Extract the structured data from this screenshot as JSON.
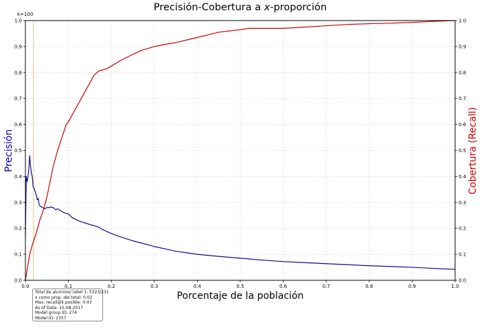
{
  "chart_data": {
    "type": "line",
    "title_parts": [
      "Precisión-Cobertura a ",
      "x",
      "-proporción"
    ],
    "xlabel": "Porcentaje de la población",
    "ylabel_left": "Precisión",
    "ylabel_right": "Cobertura (Recall)",
    "top_left_note": "k=100",
    "xlim": [
      0.0,
      1.0
    ],
    "ylim": [
      0.0,
      1.0
    ],
    "xticks": [
      "0.0",
      "0.1",
      "0.2",
      "0.3",
      "0.4",
      "0.5",
      "0.6",
      "0.7",
      "0.8",
      "0.9",
      "1.0"
    ],
    "yticks": [
      "0.0",
      "0.1",
      "0.2",
      "0.3",
      "0.4",
      "0.5",
      "0.6",
      "0.7",
      "0.8",
      "0.9",
      "1.0"
    ],
    "grid": true,
    "threshold_x": 0.0188,
    "colors": {
      "precision": "#0a0a8c",
      "recall": "#c80000",
      "threshold": "#e08800",
      "left_label": "#0000aa",
      "right_label": "#cc0000"
    },
    "series": [
      {
        "axis": "left",
        "x": [
          0.0,
          0.002,
          0.004,
          0.006,
          0.008,
          0.01,
          0.012,
          0.014,
          0.016,
          0.018,
          0.02,
          0.022,
          0.025,
          0.028,
          0.03,
          0.032,
          0.035,
          0.04,
          0.045,
          0.05,
          0.055,
          0.06,
          0.065,
          0.07,
          0.075,
          0.08,
          0.09,
          0.1,
          0.11,
          0.12,
          0.13,
          0.14,
          0.15,
          0.16,
          0.17,
          0.18,
          0.2,
          0.22,
          0.25,
          0.3,
          0.35,
          0.4,
          0.45,
          0.5,
          0.55,
          0.6,
          0.65,
          0.7,
          0.75,
          0.8,
          0.85,
          0.9,
          0.95,
          1.0
        ],
        "values": [
          0.17,
          0.4,
          0.38,
          0.4,
          0.43,
          0.48,
          0.44,
          0.41,
          0.4,
          0.36,
          0.355,
          0.345,
          0.33,
          0.31,
          0.315,
          0.29,
          0.285,
          0.28,
          0.275,
          0.28,
          0.28,
          0.282,
          0.28,
          0.272,
          0.275,
          0.27,
          0.26,
          0.255,
          0.24,
          0.232,
          0.225,
          0.22,
          0.215,
          0.21,
          0.205,
          0.195,
          0.18,
          0.168,
          0.152,
          0.13,
          0.112,
          0.1,
          0.092,
          0.085,
          0.078,
          0.072,
          0.068,
          0.064,
          0.06,
          0.056,
          0.053,
          0.05,
          0.046,
          0.042
        ]
      },
      {
        "axis": "right",
        "x": [
          0.0,
          0.005,
          0.01,
          0.015,
          0.02,
          0.025,
          0.03,
          0.035,
          0.04,
          0.045,
          0.05,
          0.055,
          0.06,
          0.065,
          0.07,
          0.075,
          0.08,
          0.085,
          0.09,
          0.095,
          0.1,
          0.11,
          0.12,
          0.13,
          0.14,
          0.15,
          0.16,
          0.17,
          0.18,
          0.19,
          0.2,
          0.22,
          0.25,
          0.27,
          0.3,
          0.33,
          0.35,
          0.4,
          0.45,
          0.5,
          0.52,
          0.55,
          0.6,
          0.65,
          0.7,
          0.75,
          0.8,
          0.85,
          0.9,
          0.95,
          1.0
        ],
        "values": [
          0.0,
          0.05,
          0.1,
          0.13,
          0.155,
          0.18,
          0.21,
          0.24,
          0.26,
          0.29,
          0.32,
          0.36,
          0.4,
          0.44,
          0.47,
          0.5,
          0.525,
          0.55,
          0.575,
          0.6,
          0.61,
          0.64,
          0.67,
          0.7,
          0.73,
          0.76,
          0.79,
          0.805,
          0.81,
          0.815,
          0.825,
          0.845,
          0.87,
          0.885,
          0.9,
          0.91,
          0.915,
          0.935,
          0.955,
          0.965,
          0.97,
          0.97,
          0.97,
          0.975,
          0.98,
          0.985,
          0.988,
          0.99,
          0.993,
          0.997,
          1.0
        ]
      }
    ]
  },
  "info_box": {
    "lines": [
      "Total de alumnos/ label 1: 5323/231",
      "x como prop. del total: 0.02",
      "Max. recall@k posible: 0.43",
      "As of Date: 15-08-2017",
      "Model group ID: 274",
      "Model ID: 2357"
    ]
  }
}
